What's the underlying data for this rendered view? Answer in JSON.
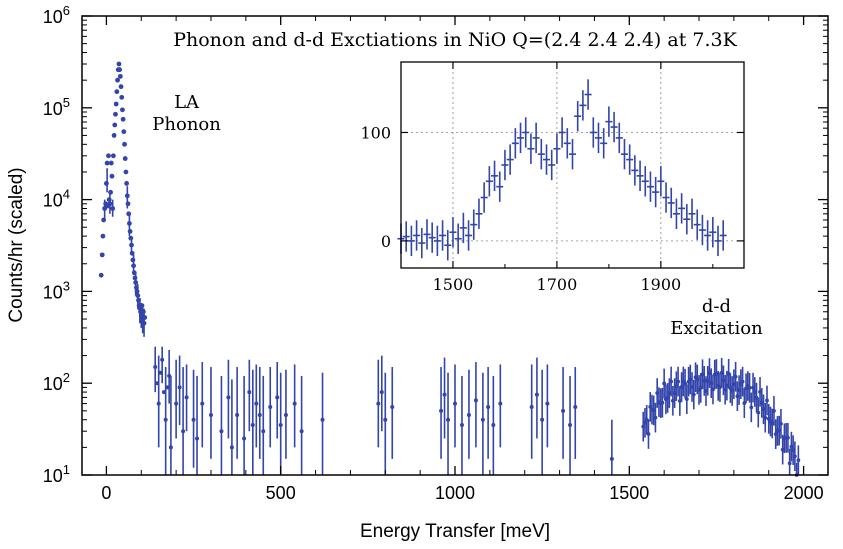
{
  "chart_data": {
    "type": "scatter",
    "title": "Phonon and d-d Exctiations in NiO  Q=(2.4 2.4 2.4)  at 7.3K",
    "xlabel": "Energy Transfer  [meV]",
    "ylabel": "Counts/hr  (scaled)",
    "xlim": [
      -70,
      2070
    ],
    "ylim": [
      10,
      1000000
    ],
    "yscale": "log",
    "grid": false,
    "legend": "none",
    "x_ticks": [
      0,
      500,
      1000,
      1500,
      2000
    ],
    "x_tick_labels": [
      "0",
      "500",
      "1000",
      "1500",
      "2000"
    ],
    "y_ticks": [
      10,
      100,
      1000,
      10000,
      100000,
      1000000
    ],
    "y_tick_labels": [
      {
        "base": "10",
        "exp": "1"
      },
      {
        "base": "10",
        "exp": "2"
      },
      {
        "base": "10",
        "exp": "3"
      },
      {
        "base": "10",
        "exp": "4"
      },
      {
        "base": "10",
        "exp": "5"
      },
      {
        "base": "10",
        "exp": "6"
      }
    ],
    "color": "#3344aa",
    "annotations": [
      {
        "id": "la",
        "lines": [
          "LA",
          "Phonon"
        ],
        "x": 230,
        "y": 100000
      },
      {
        "id": "dd",
        "lines": [
          "d-d",
          "Excitation"
        ],
        "x": 1750,
        "y": 600
      }
    ],
    "phonon_points": [
      [
        -15,
        1500
      ],
      [
        -12,
        2500
      ],
      [
        -10,
        4000
      ],
      [
        -8,
        6000
      ],
      [
        -5,
        8000
      ],
      [
        -2,
        9000
      ],
      [
        0,
        15000
      ],
      [
        2,
        25000
      ],
      [
        4,
        8500
      ],
      [
        6,
        30000
      ],
      [
        8,
        10000
      ],
      [
        10,
        9000
      ],
      [
        12,
        12000
      ],
      [
        14,
        25000
      ],
      [
        16,
        18000
      ],
      [
        18,
        8000
      ],
      [
        20,
        30000
      ],
      [
        22,
        50000
      ],
      [
        24,
        65000
      ],
      [
        26,
        85000
      ],
      [
        28,
        110000
      ],
      [
        30,
        150000
      ],
      [
        32,
        200000
      ],
      [
        34,
        260000
      ],
      [
        36,
        300000
      ],
      [
        38,
        260000
      ],
      [
        40,
        220000
      ],
      [
        42,
        170000
      ],
      [
        44,
        130000
      ],
      [
        46,
        95000
      ],
      [
        48,
        75000
      ],
      [
        50,
        55000
      ],
      [
        52,
        40000
      ],
      [
        54,
        28000
      ],
      [
        56,
        20000
      ],
      [
        58,
        15000
      ],
      [
        60,
        11000
      ],
      [
        62,
        9000
      ],
      [
        64,
        7000
      ],
      [
        66,
        5500
      ],
      [
        68,
        4500
      ],
      [
        70,
        3800
      ],
      [
        72,
        3200
      ],
      [
        74,
        2600
      ],
      [
        76,
        2200
      ],
      [
        78,
        1900
      ],
      [
        80,
        1600
      ],
      [
        82,
        1400
      ],
      [
        84,
        1250
      ],
      [
        86,
        1100
      ],
      [
        88,
        1000
      ],
      [
        90,
        900
      ],
      [
        92,
        800
      ],
      [
        94,
        700
      ],
      [
        96,
        650
      ],
      [
        98,
        600
      ],
      [
        100,
        550
      ],
      [
        102,
        700
      ],
      [
        104,
        500
      ],
      [
        106,
        600
      ],
      [
        108,
        450
      ],
      [
        110,
        520
      ]
    ],
    "phonon_error_bars": [
      [
        -5,
        6000,
        10000
      ],
      [
        2,
        12000,
        22000
      ],
      [
        10,
        7000,
        12000
      ],
      [
        18,
        6500,
        10000
      ],
      [
        60,
        8000,
        14000
      ],
      [
        66,
        4000,
        7000
      ],
      [
        72,
        2500,
        4000
      ],
      [
        78,
        1500,
        2500
      ],
      [
        84,
        900,
        1600
      ],
      [
        90,
        650,
        1200
      ],
      [
        96,
        450,
        850
      ],
      [
        100,
        400,
        750
      ],
      [
        104,
        350,
        700
      ],
      [
        108,
        320,
        650
      ]
    ],
    "tail_points": [
      [
        140,
        150
      ],
      [
        145,
        100
      ],
      [
        150,
        60
      ],
      [
        155,
        130
      ],
      [
        160,
        180
      ],
      [
        165,
        80
      ],
      [
        170,
        40
      ],
      [
        175,
        90
      ],
      [
        180,
        120
      ],
      [
        185,
        20
      ],
      [
        200,
        60
      ],
      [
        210,
        90
      ],
      [
        220,
        30
      ],
      [
        230,
        70
      ],
      [
        250,
        40
      ],
      [
        260,
        25
      ],
      [
        275,
        60
      ],
      [
        300,
        45
      ],
      [
        330,
        30
      ],
      [
        350,
        70
      ],
      [
        360,
        20
      ],
      [
        375,
        45
      ],
      [
        395,
        25
      ],
      [
        410,
        80
      ],
      [
        420,
        35
      ],
      [
        430,
        60
      ],
      [
        440,
        45
      ],
      [
        450,
        30
      ],
      [
        470,
        55
      ],
      [
        490,
        70
      ],
      [
        500,
        35
      ],
      [
        515,
        45
      ],
      [
        540,
        60
      ],
      [
        560,
        30
      ],
      [
        620,
        40
      ],
      [
        780,
        60
      ],
      [
        790,
        80
      ],
      [
        800,
        40
      ],
      [
        820,
        55
      ],
      [
        960,
        50
      ],
      [
        970,
        75
      ],
      [
        980,
        40
      ],
      [
        1000,
        60
      ],
      [
        1020,
        35
      ],
      [
        1040,
        45
      ],
      [
        1060,
        65
      ],
      [
        1080,
        40
      ],
      [
        1095,
        55
      ],
      [
        1110,
        35
      ],
      [
        1130,
        60
      ],
      [
        1220,
        55
      ],
      [
        1235,
        75
      ],
      [
        1250,
        40
      ],
      [
        1265,
        60
      ],
      [
        1310,
        50
      ],
      [
        1330,
        35
      ],
      [
        1345,
        55
      ],
      [
        1450,
        15
      ]
    ],
    "tail_error_bars": [
      [
        140,
        80,
        250
      ],
      [
        150,
        20,
        200
      ],
      [
        160,
        100,
        250
      ],
      [
        170,
        10,
        150
      ],
      [
        180,
        60,
        230
      ],
      [
        185,
        10,
        120
      ],
      [
        200,
        25,
        180
      ],
      [
        210,
        35,
        200
      ],
      [
        220,
        10,
        150
      ],
      [
        230,
        30,
        160
      ],
      [
        250,
        12,
        140
      ],
      [
        260,
        10,
        120
      ],
      [
        275,
        20,
        170
      ],
      [
        300,
        15,
        150
      ],
      [
        330,
        10,
        120
      ],
      [
        350,
        25,
        180
      ],
      [
        360,
        10,
        110
      ],
      [
        375,
        15,
        150
      ],
      [
        395,
        10,
        120
      ],
      [
        410,
        30,
        180
      ],
      [
        420,
        10,
        140
      ],
      [
        430,
        20,
        160
      ],
      [
        440,
        15,
        150
      ],
      [
        450,
        10,
        120
      ],
      [
        470,
        20,
        150
      ],
      [
        490,
        25,
        170
      ],
      [
        500,
        10,
        130
      ],
      [
        515,
        15,
        140
      ],
      [
        540,
        20,
        160
      ],
      [
        560,
        10,
        120
      ],
      [
        620,
        10,
        130
      ],
      [
        780,
        20,
        180
      ],
      [
        790,
        30,
        200
      ],
      [
        800,
        10,
        130
      ],
      [
        820,
        15,
        150
      ],
      [
        960,
        15,
        150
      ],
      [
        970,
        25,
        190
      ],
      [
        980,
        10,
        130
      ],
      [
        1000,
        20,
        160
      ],
      [
        1020,
        10,
        120
      ],
      [
        1040,
        15,
        140
      ],
      [
        1060,
        20,
        170
      ],
      [
        1080,
        10,
        130
      ],
      [
        1095,
        15,
        150
      ],
      [
        1110,
        10,
        120
      ],
      [
        1130,
        20,
        160
      ],
      [
        1220,
        15,
        160
      ],
      [
        1235,
        25,
        190
      ],
      [
        1250,
        10,
        140
      ],
      [
        1265,
        20,
        160
      ],
      [
        1310,
        15,
        150
      ],
      [
        1330,
        10,
        120
      ],
      [
        1345,
        15,
        150
      ],
      [
        1450,
        10,
        40
      ]
    ],
    "dd_peak": {
      "x_start": 1540,
      "x_end": 1985,
      "step": 5,
      "shape_x": [
        1540,
        1560,
        1580,
        1600,
        1650,
        1700,
        1750,
        1800,
        1850,
        1880,
        1900,
        1930,
        1960,
        1985
      ],
      "shape_y": [
        30,
        45,
        60,
        75,
        90,
        100,
        110,
        95,
        80,
        60,
        45,
        30,
        20,
        12
      ],
      "error_factor": 1.45
    },
    "inset": {
      "xlim": [
        1400,
        2060
      ],
      "ylim": [
        -25,
        165
      ],
      "x_ticks": [
        1500,
        1700,
        1900
      ],
      "x_tick_labels": [
        "1500",
        "1700",
        "1900"
      ],
      "y_ticks": [
        0,
        100
      ],
      "y_tick_labels": [
        "0",
        "100"
      ],
      "grid": true,
      "points": [
        [
          1400,
          2
        ],
        [
          1410,
          4
        ],
        [
          1420,
          0
        ],
        [
          1430,
          5
        ],
        [
          1440,
          -2
        ],
        [
          1450,
          6
        ],
        [
          1460,
          3
        ],
        [
          1470,
          0
        ],
        [
          1480,
          5
        ],
        [
          1490,
          -4
        ],
        [
          1500,
          8
        ],
        [
          1510,
          2
        ],
        [
          1520,
          12
        ],
        [
          1530,
          5
        ],
        [
          1540,
          15
        ],
        [
          1550,
          25
        ],
        [
          1560,
          40
        ],
        [
          1570,
          55
        ],
        [
          1580,
          60
        ],
        [
          1590,
          50
        ],
        [
          1600,
          70
        ],
        [
          1610,
          75
        ],
        [
          1620,
          90
        ],
        [
          1630,
          95
        ],
        [
          1640,
          100
        ],
        [
          1650,
          85
        ],
        [
          1660,
          95
        ],
        [
          1670,
          80
        ],
        [
          1680,
          75
        ],
        [
          1690,
          70
        ],
        [
          1700,
          85
        ],
        [
          1710,
          100
        ],
        [
          1720,
          90
        ],
        [
          1730,
          80
        ],
        [
          1740,
          115
        ],
        [
          1750,
          125
        ],
        [
          1760,
          135
        ],
        [
          1770,
          100
        ],
        [
          1780,
          95
        ],
        [
          1790,
          90
        ],
        [
          1800,
          110
        ],
        [
          1810,
          105
        ],
        [
          1820,
          95
        ],
        [
          1830,
          80
        ],
        [
          1840,
          75
        ],
        [
          1850,
          65
        ],
        [
          1860,
          60
        ],
        [
          1870,
          55
        ],
        [
          1880,
          50
        ],
        [
          1890,
          45
        ],
        [
          1900,
          55
        ],
        [
          1910,
          40
        ],
        [
          1920,
          35
        ],
        [
          1930,
          25
        ],
        [
          1940,
          30
        ],
        [
          1950,
          20
        ],
        [
          1960,
          25
        ],
        [
          1970,
          15
        ],
        [
          1980,
          10
        ],
        [
          1990,
          5
        ],
        [
          2000,
          8
        ],
        [
          2010,
          0
        ],
        [
          2020,
          5
        ]
      ],
      "error": 14
    }
  }
}
